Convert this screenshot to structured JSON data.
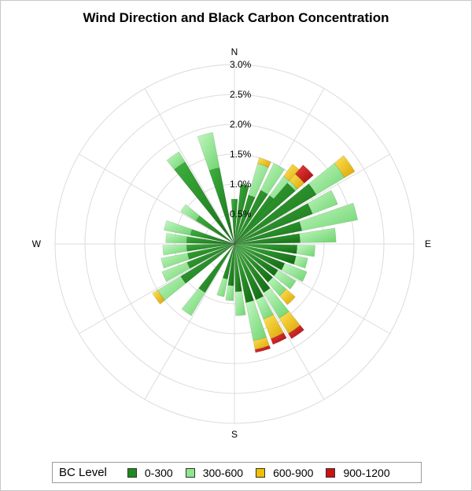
{
  "chart_data": {
    "type": "polar-stacked-bar",
    "title": "Wind Direction and Black Carbon Concentration",
    "direction_labels": [
      "N",
      "E",
      "S",
      "W"
    ],
    "radial_ticks": [
      "0.5%",
      "1.0%",
      "1.5%",
      "2.0%",
      "2.5%",
      "3.0%"
    ],
    "radial_tick_values": [
      0.5,
      1.0,
      1.5,
      2.0,
      2.5,
      3.0
    ],
    "rmax": 3.0,
    "grid": true,
    "legend_position": "bottom",
    "legend_title": "BC Level",
    "series": [
      {
        "name": "0-300",
        "color": "#1f8a1f"
      },
      {
        "name": "300-600",
        "color": "#8ee68e"
      },
      {
        "name": "600-900",
        "color": "#f0c000"
      },
      {
        "name": "900-1200",
        "color": "#cc1111"
      }
    ],
    "bars": [
      {
        "angle": 0,
        "values": [
          0.75,
          0,
          0,
          0
        ]
      },
      {
        "angle": 10,
        "values": [
          1.0,
          0,
          0,
          0
        ]
      },
      {
        "angle": 20,
        "values": [
          0.85,
          0.55,
          0.1,
          0
        ]
      },
      {
        "angle": 30,
        "values": [
          1.0,
          0.5,
          0,
          0
        ]
      },
      {
        "angle": 40,
        "values": [
          1.0,
          0.4,
          0.25,
          0
        ]
      },
      {
        "angle": 45,
        "values": [
          1.35,
          0.05,
          0.15,
          0.2
        ]
      },
      {
        "angle": 55,
        "values": [
          1.6,
          0.55,
          0.2,
          0
        ]
      },
      {
        "angle": 65,
        "values": [
          1.4,
          0.45,
          0,
          0
        ]
      },
      {
        "angle": 75,
        "values": [
          1.15,
          0.95,
          0,
          0
        ]
      },
      {
        "angle": 85,
        "values": [
          1.1,
          0.6,
          0,
          0
        ]
      },
      {
        "angle": 95,
        "values": [
          1.05,
          0.3,
          0,
          0
        ]
      },
      {
        "angle": 105,
        "values": [
          1.05,
          0.2,
          0,
          0
        ]
      },
      {
        "angle": 115,
        "values": [
          0.9,
          0.4,
          0,
          0
        ]
      },
      {
        "angle": 125,
        "values": [
          0.85,
          0.35,
          0,
          0
        ]
      },
      {
        "angle": 135,
        "values": [
          0.85,
          0.3,
          0.2,
          0
        ]
      },
      {
        "angle": 145,
        "values": [
          0.95,
          0.5,
          0.3,
          0.1
        ]
      },
      {
        "angle": 155,
        "values": [
          1.0,
          0.35,
          0.35,
          0.1
        ]
      },
      {
        "angle": 165,
        "values": [
          1.0,
          0.65,
          0.15,
          0.05
        ]
      },
      {
        "angle": 175,
        "values": [
          0.8,
          0.4,
          0,
          0
        ]
      },
      {
        "angle": 185,
        "values": [
          0.7,
          0.25,
          0,
          0
        ]
      },
      {
        "angle": 195,
        "values": [
          0.6,
          0.3,
          0,
          0
        ]
      },
      {
        "angle": 215,
        "values": [
          0.95,
          0.45,
          0,
          0
        ]
      },
      {
        "angle": 235,
        "values": [
          1.05,
          0.45,
          0.1,
          0
        ]
      },
      {
        "angle": 245,
        "values": [
          0.85,
          0.45,
          0,
          0
        ]
      },
      {
        "angle": 255,
        "values": [
          0.8,
          0.45,
          0,
          0
        ]
      },
      {
        "angle": 265,
        "values": [
          0.8,
          0.4,
          0,
          0
        ]
      },
      {
        "angle": 275,
        "values": [
          0.8,
          0.35,
          0,
          0
        ]
      },
      {
        "angle": 285,
        "values": [
          0.75,
          0.45,
          0,
          0
        ]
      },
      {
        "angle": 305,
        "values": [
          0.75,
          0.3,
          0,
          0
        ]
      },
      {
        "angle": 325,
        "values": [
          1.6,
          0.2,
          0,
          0
        ]
      },
      {
        "angle": 345,
        "values": [
          1.3,
          0.6,
          0,
          0
        ]
      }
    ],
    "bar_width_deg": 8
  }
}
